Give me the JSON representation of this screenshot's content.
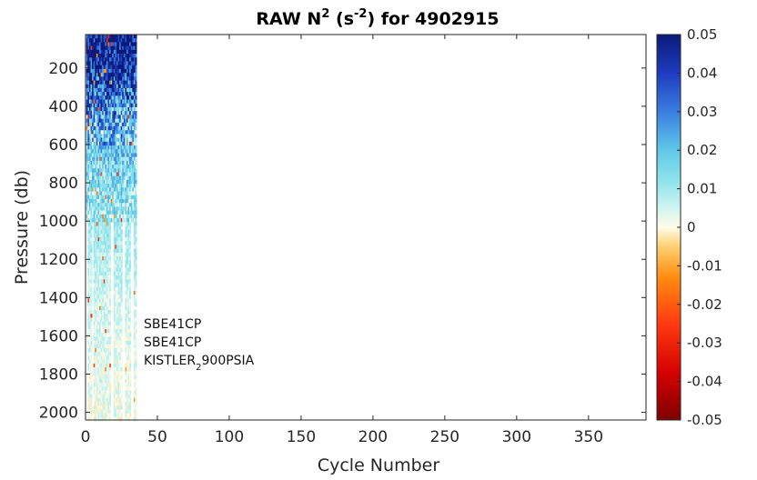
{
  "chart_data": {
    "type": "heatmap",
    "title": {
      "prefix": "RAW N",
      "sup1": "2",
      "mid": " (s",
      "sup2": "-2",
      "suffix": ") for 4902915"
    },
    "xlabel": "Cycle Number",
    "ylabel": "Pressure (db)",
    "xlim": [
      0,
      390
    ],
    "ylim": [
      25,
      2040
    ],
    "y_reversed": true,
    "x_ticks": [
      "0",
      "50",
      "100",
      "150",
      "200",
      "250",
      "300",
      "350"
    ],
    "y_ticks": [
      "200",
      "400",
      "600",
      "800",
      "1000",
      "1200",
      "1400",
      "1600",
      "1800",
      "2000"
    ],
    "colorbar": {
      "min": -0.05,
      "max": 0.05,
      "ticks": [
        "0.05",
        "0.04",
        "0.03",
        "0.02",
        "0.01",
        "0",
        "-0.01",
        "-0.02",
        "-0.03",
        "-0.04",
        "-0.05"
      ]
    },
    "data_extent": {
      "cycles": [
        1,
        35
      ],
      "pressure": [
        25,
        2040
      ],
      "deep_profile_cycles": [
        6,
        35
      ],
      "shallow_profile_cycles": [
        1,
        5,
        18,
        19,
        26,
        27,
        32,
        33
      ],
      "shallow_max_pressure": 1000
    },
    "value_profile": [
      {
        "pressure": 25,
        "n2": 0.05
      },
      {
        "pressure": 150,
        "n2": 0.048
      },
      {
        "pressure": 250,
        "n2": 0.04
      },
      {
        "pressure": 350,
        "n2": 0.032
      },
      {
        "pressure": 500,
        "n2": 0.022
      },
      {
        "pressure": 700,
        "n2": 0.016
      },
      {
        "pressure": 900,
        "n2": 0.012
      },
      {
        "pressure": 1100,
        "n2": 0.009
      },
      {
        "pressure": 1400,
        "n2": 0.005
      },
      {
        "pressure": 1700,
        "n2": 0.003
      },
      {
        "pressure": 2040,
        "n2": 0.002
      }
    ],
    "annotations": [
      {
        "text": "SBE41CP"
      },
      {
        "text": "SBE41CP"
      },
      {
        "main": "KISTLER",
        "sub": "2",
        "rest": "900PSIA"
      }
    ],
    "grid": false
  }
}
